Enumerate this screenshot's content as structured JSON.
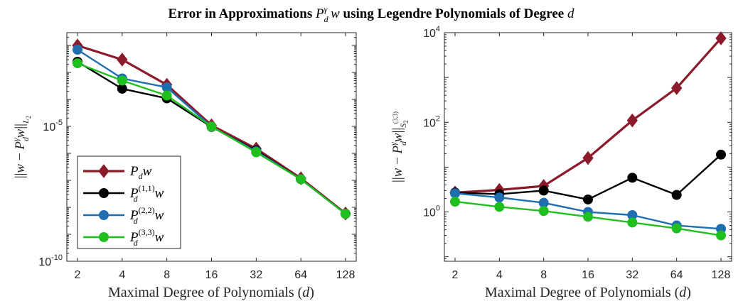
{
  "figure": {
    "title": "Error in Approximations P_d^γ w using Legendre Polynomials of Degree d"
  },
  "colors": {
    "Pdw": "#8b1a2b",
    "P11": "#000000",
    "P22": "#1f6fb0",
    "P33": "#1fbf1f"
  },
  "chart_data": [
    {
      "type": "line",
      "xscale": "log2",
      "yscale": "log10",
      "x": [
        2,
        4,
        8,
        16,
        32,
        64,
        128
      ],
      "xticks": [
        "2",
        "4",
        "8",
        "16",
        "32",
        "64",
        "128"
      ],
      "xlabel": "Maximal Degree of Polynomials (d)",
      "ylabel": "||w − P_d^γ w||_{L_2}",
      "ylim": [
        1e-10,
        0.03
      ],
      "yticks": [
        {
          "base": "10",
          "exp": "-5",
          "value": 1e-05
        },
        {
          "base": "10",
          "exp": "-10",
          "value": 1e-10
        }
      ],
      "grid": false,
      "legend": "bottom-left",
      "series": [
        {
          "name": "P_d w",
          "values": [
            0.01,
            0.003,
            0.00035,
            1.1e-05,
            1.5e-06,
            1.2e-07,
            5.9e-09
          ]
        },
        {
          "name": "P_d^(1,1) w",
          "values": [
            0.0025,
            0.00025,
            0.00011,
            9.6e-06,
            1.3e-06,
            1.1e-07,
            5.8e-09
          ]
        },
        {
          "name": "P_d^(2,2) w",
          "values": [
            0.007,
            0.0006,
            0.00028,
            9.8e-06,
            1.2e-06,
            1.1e-07,
            5.7e-09
          ]
        },
        {
          "name": "P_d^(3,3) w",
          "values": [
            0.0022,
            0.0005,
            0.00014,
            9.9e-06,
            1.1e-06,
            1.1e-07,
            5.7e-09
          ]
        }
      ]
    },
    {
      "type": "line",
      "xscale": "log2",
      "yscale": "log10",
      "x": [
        2,
        4,
        8,
        16,
        32,
        64,
        128
      ],
      "xticks": [
        "2",
        "4",
        "8",
        "16",
        "32",
        "64",
        "128"
      ],
      "xlabel": "Maximal Degree of Polynomials (d)",
      "ylabel": "||w − P_d^γ w||_{S_2^(3,3)}",
      "ylim": [
        0.0794,
        10000
      ],
      "yticks": [
        {
          "base": "10",
          "exp": "4",
          "value": 10000
        },
        {
          "base": "10",
          "exp": "2",
          "value": 100
        },
        {
          "base": "10",
          "exp": "0",
          "value": 1
        }
      ],
      "grid": false,
      "series": [
        {
          "name": "P_d w",
          "values": [
            2.7,
            3.1,
            3.8,
            16,
            110,
            580,
            7500
          ]
        },
        {
          "name": "P_d^(1,1) w",
          "values": [
            2.7,
            2.5,
            3.0,
            1.9,
            5.8,
            2.4,
            19
          ]
        },
        {
          "name": "P_d^(2,2) w",
          "values": [
            2.6,
            2.1,
            1.6,
            1.0,
            0.85,
            0.5,
            0.42
          ]
        },
        {
          "name": "P_d^(3,3) w",
          "values": [
            1.7,
            1.3,
            1.05,
            0.78,
            0.58,
            0.43,
            0.3
          ]
        }
      ]
    }
  ]
}
